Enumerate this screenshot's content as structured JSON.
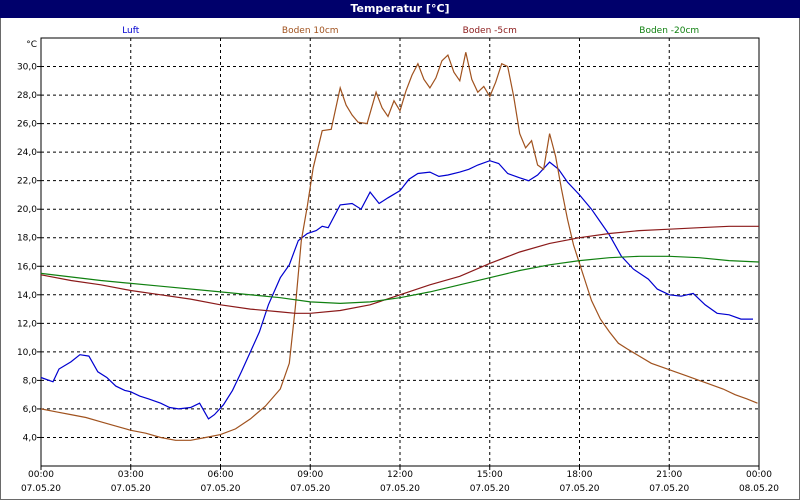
{
  "window": {
    "title": "Temperatur [°C]"
  },
  "chart_data": {
    "type": "line",
    "title": "Temperatur [°C]",
    "ylabel": "°C",
    "xlabel": "",
    "ylim": [
      2.0,
      32.0
    ],
    "yticks": [
      "4,0",
      "6,0",
      "8,0",
      "10,0",
      "12,0",
      "14,0",
      "16,0",
      "18,0",
      "20,0",
      "22,0",
      "24,0",
      "26,0",
      "28,0",
      "30,0"
    ],
    "xlim": [
      0,
      24
    ],
    "xticks": [
      {
        "time": "00:00",
        "date": "07.05.20"
      },
      {
        "time": "03:00",
        "date": "07.05.20"
      },
      {
        "time": "06:00",
        "date": "07.05.20"
      },
      {
        "time": "09:00",
        "date": "07.05.20"
      },
      {
        "time": "12:00",
        "date": "07.05.20"
      },
      {
        "time": "15:00",
        "date": "07.05.20"
      },
      {
        "time": "18:00",
        "date": "07.05.20"
      },
      {
        "time": "21:00",
        "date": "07.05.20"
      },
      {
        "time": "00:00",
        "date": "08.05.20"
      }
    ],
    "grid": true,
    "legend_position": "top",
    "series": [
      {
        "name": "Luft",
        "color": "#0000d0",
        "x": [
          0,
          0.4,
          0.6,
          1.0,
          1.3,
          1.6,
          1.9,
          2.2,
          2.5,
          2.8,
          3.0,
          3.3,
          3.6,
          4.0,
          4.3,
          4.6,
          5.0,
          5.3,
          5.6,
          5.8,
          6.1,
          6.4,
          6.7,
          7.0,
          7.3,
          7.6,
          8.0,
          8.3,
          8.6,
          8.9,
          9.2,
          9.4,
          9.6,
          10.0,
          10.4,
          10.7,
          11.0,
          11.3,
          11.6,
          12.0,
          12.3,
          12.6,
          13.0,
          13.3,
          13.6,
          14.0,
          14.3,
          14.6,
          15.0,
          15.3,
          15.6,
          16.0,
          16.3,
          16.6,
          17.0,
          17.3,
          17.6,
          18.0,
          18.4,
          18.7,
          19.0,
          19.4,
          19.8,
          20.3,
          20.6,
          21.0,
          21.4,
          21.8,
          22.2,
          22.6,
          23.0,
          23.4,
          23.8
        ],
        "y": [
          8.2,
          7.9,
          8.8,
          9.3,
          9.8,
          9.7,
          8.6,
          8.2,
          7.6,
          7.3,
          7.2,
          6.9,
          6.7,
          6.4,
          6.1,
          6.0,
          6.1,
          6.4,
          5.3,
          5.6,
          6.3,
          7.3,
          8.6,
          10.0,
          11.4,
          13.3,
          15.2,
          16.1,
          17.8,
          18.3,
          18.5,
          18.8,
          18.7,
          20.3,
          20.4,
          20.0,
          21.2,
          20.4,
          20.8,
          21.3,
          22.1,
          22.5,
          22.6,
          22.3,
          22.4,
          22.6,
          22.8,
          23.1,
          23.4,
          23.2,
          22.5,
          22.2,
          22.0,
          22.4,
          23.3,
          22.8,
          21.9,
          21.0,
          20.0,
          19.1,
          18.2,
          16.7,
          15.8,
          15.1,
          14.4,
          14.0,
          13.9,
          14.1,
          13.3,
          12.7,
          12.6,
          12.3,
          12.3
        ]
      },
      {
        "name": "Boden 10cm",
        "color": "#a0521e",
        "x": [
          0,
          0.5,
          1.0,
          1.5,
          2.0,
          2.5,
          3.0,
          3.5,
          4.0,
          4.5,
          5.0,
          5.5,
          6.0,
          6.5,
          7.0,
          7.5,
          8.0,
          8.3,
          8.5,
          8.7,
          8.9,
          9.1,
          9.4,
          9.7,
          10.0,
          10.2,
          10.4,
          10.6,
          10.9,
          11.2,
          11.4,
          11.6,
          11.8,
          12.0,
          12.2,
          12.4,
          12.6,
          12.8,
          13.0,
          13.2,
          13.4,
          13.6,
          13.8,
          14.0,
          14.2,
          14.4,
          14.6,
          14.8,
          15.0,
          15.2,
          15.4,
          15.6,
          15.8,
          16.0,
          16.2,
          16.4,
          16.6,
          16.8,
          17.0,
          17.2,
          17.4,
          17.6,
          17.8,
          18.0,
          18.2,
          18.4,
          18.7,
          19.0,
          19.3,
          19.6,
          20.0,
          20.4,
          20.8,
          21.2,
          21.6,
          22.0,
          22.4,
          22.8,
          23.2,
          23.6,
          23.95
        ],
        "y": [
          6.0,
          5.8,
          5.6,
          5.4,
          5.1,
          4.8,
          4.5,
          4.3,
          4.0,
          3.8,
          3.8,
          4.0,
          4.2,
          4.6,
          5.3,
          6.2,
          7.4,
          9.2,
          13.1,
          17.8,
          20.2,
          22.9,
          25.5,
          25.6,
          28.5,
          27.3,
          26.6,
          26.1,
          26.0,
          28.2,
          27.1,
          26.5,
          27.6,
          26.9,
          28.3,
          29.4,
          30.2,
          29.1,
          28.5,
          29.2,
          30.4,
          30.8,
          29.6,
          29.0,
          31.0,
          29.1,
          28.2,
          28.6,
          27.9,
          28.9,
          30.2,
          30.0,
          27.9,
          25.3,
          24.3,
          24.8,
          23.1,
          22.8,
          25.3,
          23.7,
          21.4,
          19.3,
          17.5,
          16.2,
          14.9,
          13.6,
          12.3,
          11.4,
          10.6,
          10.2,
          9.7,
          9.2,
          8.9,
          8.6,
          8.3,
          8.0,
          7.7,
          7.4,
          7.0,
          6.7,
          6.4
        ]
      },
      {
        "name": "Boden -5cm",
        "color": "#8b1a1a",
        "x": [
          0,
          1,
          2,
          3,
          4,
          5,
          6,
          7,
          8,
          8.5,
          9,
          10,
          11,
          12,
          13,
          14,
          15,
          16,
          17,
          18,
          19,
          20,
          21,
          22,
          23,
          24
        ],
        "y": [
          15.4,
          15.0,
          14.7,
          14.3,
          14.0,
          13.7,
          13.3,
          13.0,
          12.8,
          12.7,
          12.7,
          12.9,
          13.3,
          14.0,
          14.7,
          15.3,
          16.2,
          17.0,
          17.6,
          18.0,
          18.3,
          18.5,
          18.6,
          18.7,
          18.8,
          18.8
        ]
      },
      {
        "name": "Boden -20cm",
        "color": "#108010",
        "x": [
          0,
          2,
          4,
          6,
          8,
          9,
          10,
          11,
          12,
          13,
          14,
          15,
          16,
          17,
          18,
          19,
          20,
          21,
          22,
          23,
          24
        ],
        "y": [
          15.5,
          15.0,
          14.6,
          14.2,
          13.8,
          13.5,
          13.4,
          13.5,
          13.8,
          14.2,
          14.7,
          15.2,
          15.7,
          16.1,
          16.4,
          16.6,
          16.7,
          16.7,
          16.6,
          16.4,
          16.3
        ]
      }
    ]
  }
}
